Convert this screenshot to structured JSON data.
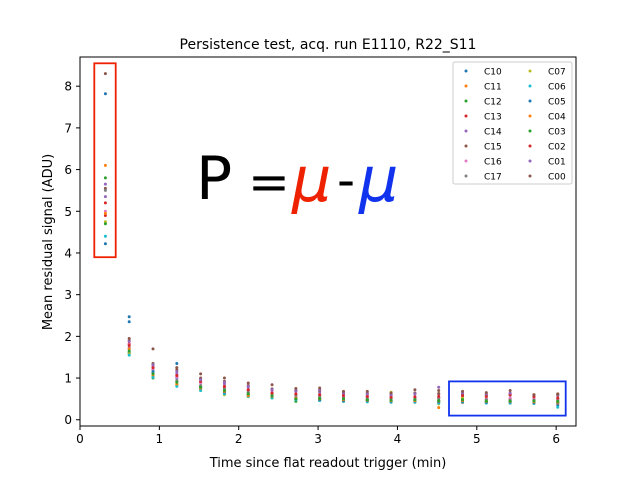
{
  "chart_data": {
    "type": "scatter",
    "title": "Persistence test, acq. run E1110, R22_S11",
    "xlabel": "Time since flat readout trigger (min)",
    "ylabel": "Mean residual signal (ADU)",
    "xlim": [
      0,
      6.25
    ],
    "ylim": [
      -0.15,
      8.7
    ],
    "xticks": [
      "0",
      "1",
      "2",
      "3",
      "4",
      "5",
      "6"
    ],
    "yticks": [
      "0",
      "1",
      "2",
      "3",
      "4",
      "5",
      "6",
      "7",
      "8"
    ],
    "grid": false,
    "legend_position": "top-right",
    "annotation": {
      "p": "P",
      "eq": "=",
      "mu1": "μ",
      "minus": "-",
      "mu2": "μ",
      "mu1_color": "#ee2200",
      "mu2_color": "#1133ee"
    },
    "highlight_boxes": [
      {
        "color": "#ee2200",
        "x_range": [
          0.18,
          0.45
        ],
        "y_range": [
          3.9,
          8.55
        ]
      },
      {
        "color": "#1133ee",
        "x_range": [
          4.65,
          6.12
        ],
        "y_range": [
          0.1,
          0.92
        ]
      }
    ],
    "x": [
      0.32,
      0.62,
      0.92,
      1.22,
      1.52,
      1.82,
      2.12,
      2.42,
      2.72,
      3.02,
      3.32,
      3.62,
      3.92,
      4.22,
      4.52,
      4.82,
      5.12,
      5.42,
      5.72,
      6.02
    ],
    "series": [
      {
        "name": "C10",
        "color": "#1f77b4",
        "values": [
          7.82,
          2.47,
          1.2,
          1.0,
          0.8,
          0.66,
          0.6,
          0.55,
          0.52,
          0.5,
          0.46,
          0.47,
          0.45,
          0.46,
          0.44,
          0.45,
          0.43,
          0.43,
          0.42,
          0.35
        ]
      },
      {
        "name": "C11",
        "color": "#ff7f0e",
        "values": [
          6.1,
          1.7,
          1.1,
          0.84,
          0.74,
          0.66,
          0.58,
          0.55,
          0.5,
          0.47,
          0.44,
          0.44,
          0.42,
          0.42,
          0.29,
          0.41,
          0.41,
          0.4,
          0.39,
          0.39
        ]
      },
      {
        "name": "C12",
        "color": "#2ca02c",
        "values": [
          5.8,
          1.6,
          1.0,
          0.92,
          0.8,
          0.72,
          0.65,
          0.58,
          0.44,
          0.52,
          0.48,
          0.48,
          0.46,
          0.47,
          0.45,
          0.47,
          0.44,
          0.44,
          0.43,
          0.42
        ]
      },
      {
        "name": "C13",
        "color": "#d62728",
        "values": [
          4.9,
          1.82,
          1.25,
          1.05,
          0.9,
          0.78,
          0.7,
          0.62,
          0.6,
          0.6,
          0.55,
          0.54,
          0.52,
          0.52,
          0.52,
          0.54,
          0.5,
          0.5,
          0.49,
          0.49
        ]
      },
      {
        "name": "C14",
        "color": "#9467bd",
        "values": [
          5.65,
          1.72,
          1.3,
          1.1,
          0.98,
          0.86,
          0.78,
          0.7,
          0.68,
          0.66,
          0.62,
          0.6,
          0.58,
          0.62,
          0.62,
          0.6,
          0.58,
          0.58,
          0.57,
          0.6
        ]
      },
      {
        "name": "C15",
        "color": "#8c564b",
        "values": [
          5.55,
          1.9,
          1.35,
          1.2,
          1.0,
          0.92,
          0.82,
          0.74,
          0.7,
          0.7,
          0.66,
          0.64,
          0.62,
          0.64,
          0.63,
          0.62,
          0.6,
          0.62,
          0.58,
          0.58
        ]
      },
      {
        "name": "C16",
        "color": "#e377c2",
        "values": [
          5.0,
          1.8,
          1.22,
          1.02,
          0.88,
          0.8,
          0.72,
          0.65,
          0.6,
          0.58,
          0.56,
          0.55,
          0.53,
          0.54,
          0.54,
          0.55,
          0.52,
          0.52,
          0.51,
          0.5
        ]
      },
      {
        "name": "C17",
        "color": "#7f7f7f",
        "values": [
          5.5,
          1.62,
          1.12,
          0.94,
          0.82,
          0.74,
          0.66,
          0.6,
          0.56,
          0.55,
          0.52,
          0.51,
          0.5,
          0.5,
          0.5,
          0.5,
          0.48,
          0.47,
          0.47,
          0.46
        ]
      },
      {
        "name": "C07",
        "color": "#bcbd22",
        "values": [
          4.75,
          1.58,
          1.05,
          0.82,
          0.7,
          0.6,
          0.55,
          0.52,
          0.48,
          0.48,
          0.45,
          0.45,
          0.66,
          0.44,
          0.38,
          0.52,
          0.56,
          0.6,
          0.6,
          0.62
        ]
      },
      {
        "name": "C06",
        "color": "#17becf",
        "values": [
          4.4,
          1.55,
          1.02,
          0.8,
          0.7,
          0.62,
          0.56,
          0.52,
          0.48,
          0.46,
          0.44,
          0.43,
          0.42,
          0.42,
          0.4,
          0.42,
          0.4,
          0.4,
          0.39,
          0.3
        ]
      },
      {
        "name": "C05",
        "color": "#1f77b4",
        "values": [
          4.22,
          2.35,
          1.15,
          1.35,
          0.76,
          0.66,
          0.6,
          0.56,
          0.5,
          0.48,
          0.46,
          0.46,
          0.45,
          0.45,
          0.43,
          0.44,
          0.42,
          0.43,
          0.41,
          0.4
        ]
      },
      {
        "name": "C04",
        "color": "#ff7f0e",
        "values": [
          4.95,
          1.7,
          1.08,
          0.86,
          0.76,
          0.68,
          0.58,
          0.56,
          0.52,
          0.5,
          0.48,
          0.47,
          0.46,
          0.46,
          0.45,
          0.46,
          0.44,
          0.44,
          0.43,
          0.42
        ]
      },
      {
        "name": "C03",
        "color": "#2ca02c",
        "values": [
          4.7,
          1.65,
          1.1,
          0.9,
          0.78,
          0.7,
          0.62,
          0.57,
          0.5,
          0.51,
          0.5,
          0.48,
          0.47,
          0.48,
          0.46,
          0.48,
          0.45,
          0.45,
          0.45,
          0.44
        ]
      },
      {
        "name": "C02",
        "color": "#d62728",
        "values": [
          5.2,
          1.78,
          1.25,
          1.06,
          0.92,
          0.8,
          0.72,
          0.64,
          0.62,
          0.6,
          0.58,
          0.56,
          0.54,
          0.55,
          0.56,
          0.58,
          0.56,
          0.6,
          0.55,
          0.52
        ]
      },
      {
        "name": "C01",
        "color": "#9467bd",
        "values": [
          5.35,
          1.88,
          1.32,
          1.15,
          0.96,
          0.9,
          0.8,
          0.72,
          0.7,
          0.72,
          0.65,
          0.62,
          0.6,
          0.62,
          0.78,
          0.64,
          0.62,
          0.64,
          0.6,
          0.6
        ]
      },
      {
        "name": "C00",
        "color": "#8c564b",
        "values": [
          8.3,
          1.95,
          1.7,
          1.25,
          1.1,
          1.0,
          0.88,
          0.84,
          0.75,
          0.76,
          0.68,
          0.68,
          0.64,
          0.72,
          0.7,
          0.68,
          0.65,
          0.7,
          0.6,
          0.62
        ]
      }
    ]
  }
}
